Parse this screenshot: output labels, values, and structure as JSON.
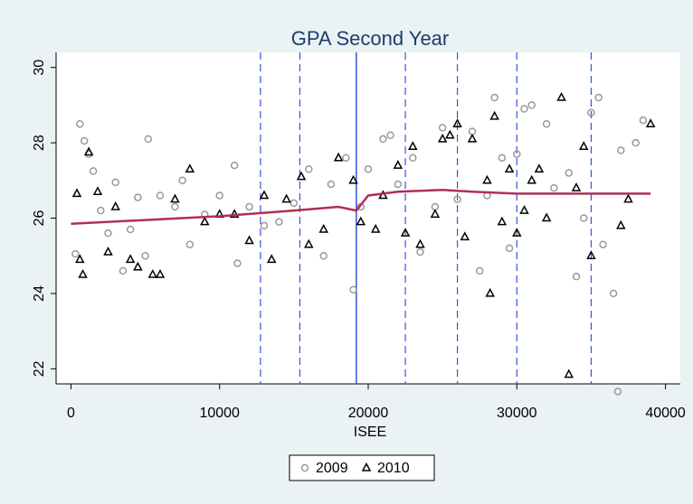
{
  "chart_data": {
    "type": "scatter",
    "title": "GPA Second Year",
    "x_label": "ISEE",
    "xlim": [
      -1000,
      41000
    ],
    "ylim": [
      21.6,
      30.4
    ],
    "xticks": [
      0,
      10000,
      20000,
      30000,
      40000
    ],
    "yticks": [
      22,
      24,
      26,
      28,
      30
    ],
    "legend": "bottom",
    "cutoffs": [
      12750,
      15400,
      22500,
      26000,
      30000,
      35000
    ],
    "cutoff_color": "#3355dd",
    "threshold": 19200,
    "threshold_color": "#3355dd",
    "fit": {
      "color": "#b03050",
      "x": [
        0,
        5000,
        10000,
        15000,
        18000,
        19200,
        20000,
        22000,
        25000,
        27000,
        30000,
        39000
      ],
      "y": [
        25.85,
        25.95,
        26.05,
        26.2,
        26.3,
        26.2,
        26.6,
        26.7,
        26.75,
        26.7,
        26.65,
        26.65
      ]
    },
    "series": [
      {
        "name": "2009",
        "color": "#999999",
        "marker": "circle",
        "x": [
          300,
          600,
          900,
          1200,
          1500,
          2000,
          2500,
          3000,
          3500,
          4000,
          4500,
          5000,
          5200,
          6000,
          7000,
          7500,
          8000,
          9000,
          10000,
          11000,
          11200,
          12000,
          13000,
          14000,
          15000,
          16000,
          17000,
          17500,
          18500,
          19000,
          19500,
          20000,
          21000,
          21500,
          22000,
          23000,
          23500,
          24500,
          25000,
          26000,
          27000,
          27500,
          28000,
          28500,
          29000,
          29500,
          30000,
          30500,
          31000,
          32000,
          32500,
          33500,
          34000,
          34500,
          35000,
          35500,
          35800,
          36500,
          36800,
          37000,
          38000,
          38500
        ],
        "values": [
          25.05,
          28.5,
          28.05,
          27.7,
          27.25,
          26.2,
          25.6,
          26.95,
          24.6,
          25.7,
          26.55,
          25.0,
          28.1,
          26.6,
          26.3,
          27.0,
          25.3,
          26.1,
          26.6,
          27.4,
          24.8,
          26.3,
          25.8,
          25.9,
          26.4,
          27.3,
          25.0,
          26.9,
          27.6,
          24.1,
          26.3,
          27.3,
          28.1,
          28.2,
          26.9,
          27.6,
          25.1,
          26.3,
          28.4,
          26.5,
          28.3,
          24.6,
          26.6,
          29.2,
          27.6,
          25.2,
          27.7,
          28.9,
          29.0,
          28.5,
          26.8,
          27.2,
          24.45,
          26.0,
          28.8,
          29.2,
          25.3,
          24.0,
          21.4,
          27.8,
          28.0,
          28.6
        ]
      },
      {
        "name": "2010",
        "color": "#000000",
        "marker": "triangle",
        "x": [
          400,
          600,
          800,
          1200,
          1800,
          2500,
          3000,
          4000,
          4500,
          5500,
          6000,
          7000,
          8000,
          9000,
          10000,
          11000,
          12000,
          13000,
          13500,
          14500,
          15500,
          16000,
          17000,
          18000,
          19000,
          19500,
          20500,
          21000,
          22000,
          22500,
          23000,
          23500,
          24500,
          25000,
          25500,
          26000,
          26500,
          27000,
          28000,
          28200,
          28500,
          29000,
          29500,
          30000,
          30500,
          31000,
          31500,
          32000,
          33000,
          33500,
          34000,
          34500,
          35000,
          37000,
          37500,
          39000
        ],
        "values": [
          26.65,
          24.9,
          24.5,
          27.75,
          26.7,
          25.1,
          26.3,
          24.9,
          24.7,
          24.5,
          24.5,
          26.5,
          27.3,
          25.9,
          26.1,
          26.1,
          25.4,
          26.6,
          24.9,
          26.5,
          27.1,
          25.3,
          25.7,
          27.6,
          27.0,
          25.9,
          25.7,
          26.6,
          27.4,
          25.6,
          27.9,
          25.3,
          26.1,
          28.1,
          28.2,
          28.5,
          25.5,
          28.1,
          27.0,
          24.0,
          28.7,
          25.9,
          27.3,
          25.6,
          26.2,
          27.0,
          27.3,
          26.0,
          29.2,
          21.85,
          26.8,
          27.9,
          25.0,
          25.8,
          26.5,
          28.5
        ]
      }
    ]
  }
}
